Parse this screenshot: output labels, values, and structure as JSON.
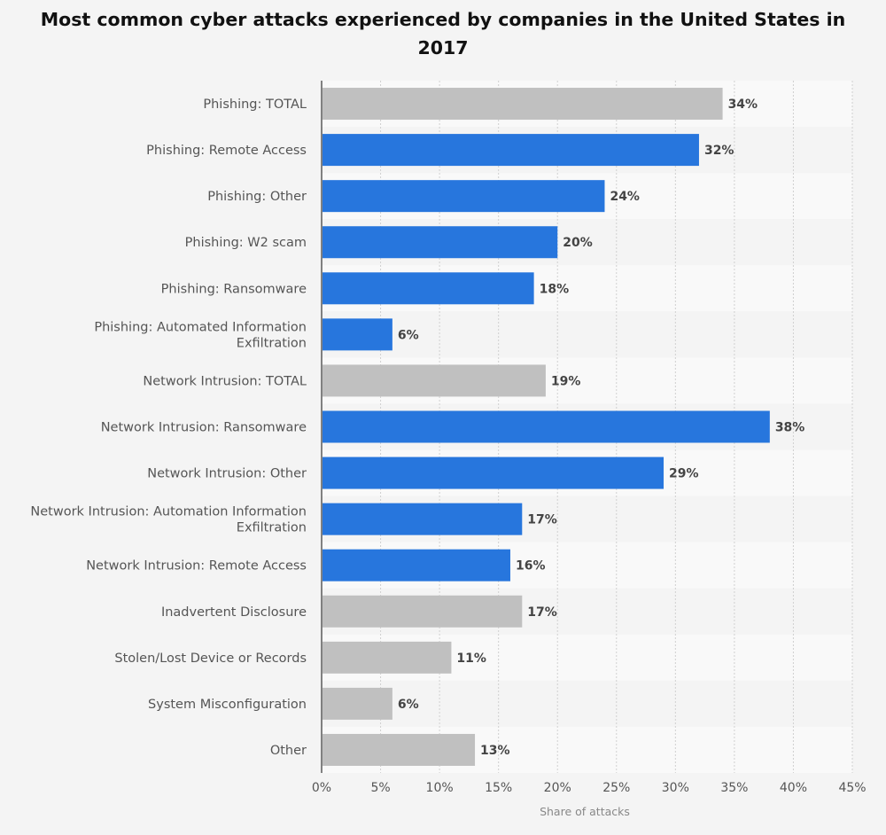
{
  "chart_data": {
    "type": "bar",
    "orientation": "horizontal",
    "title": "Most common cyber attacks experienced by companies in the United States in 2017",
    "xlabel": "Share of attacks",
    "ylabel": "",
    "categories": [
      "Phishing: TOTAL",
      "Phishing: Remote Access",
      "Phishing: Other",
      "Phishing: W2 scam",
      "Phishing: Ransomware",
      "Phishing: Automated Information Exfiltration",
      "Network Intrusion: TOTAL",
      "Network Intrusion: Ransomware",
      "Network Intrusion: Other",
      "Network Intrusion: Automation Information Exfiltration",
      "Network Intrusion: Remote Access",
      "Inadvertent Disclosure",
      "Stolen/Lost Device or Records",
      "System Misconfiguration",
      "Other"
    ],
    "category_lines": [
      [
        "Phishing: TOTAL"
      ],
      [
        "Phishing: Remote Access"
      ],
      [
        "Phishing: Other"
      ],
      [
        "Phishing: W2 scam"
      ],
      [
        "Phishing: Ransomware"
      ],
      [
        "Phishing: Automated Information",
        "Exfiltration"
      ],
      [
        "Network Intrusion: TOTAL"
      ],
      [
        "Network Intrusion: Ransomware"
      ],
      [
        "Network Intrusion: Other"
      ],
      [
        "Network Intrusion: Automation Information",
        "Exfiltration"
      ],
      [
        "Network Intrusion: Remote Access"
      ],
      [
        "Inadvertent Disclosure"
      ],
      [
        "Stolen/Lost Device or Records"
      ],
      [
        "System Misconfiguration"
      ],
      [
        "Other"
      ]
    ],
    "values": [
      34,
      32,
      24,
      20,
      18,
      6,
      19,
      38,
      29,
      17,
      16,
      17,
      11,
      6,
      13
    ],
    "value_labels": [
      "34%",
      "32%",
      "24%",
      "20%",
      "18%",
      "6%",
      "19%",
      "38%",
      "29%",
      "17%",
      "16%",
      "17%",
      "11%",
      "6%",
      "13%"
    ],
    "highlight": [
      false,
      true,
      true,
      true,
      true,
      true,
      false,
      true,
      true,
      true,
      true,
      false,
      false,
      false,
      false
    ],
    "xlim": [
      0,
      45
    ],
    "xticks": [
      0,
      5,
      10,
      15,
      20,
      25,
      30,
      35,
      40,
      45
    ],
    "xtick_labels": [
      "0%",
      "5%",
      "10%",
      "15%",
      "20%",
      "25%",
      "30%",
      "35%",
      "40%",
      "45%"
    ],
    "grid": true,
    "colors": {
      "highlight_bar": "#2776dd",
      "total_bar": "#c0c0c0",
      "band_light": "#f9f9f9",
      "band_dark": "#f4f4f4"
    }
  }
}
